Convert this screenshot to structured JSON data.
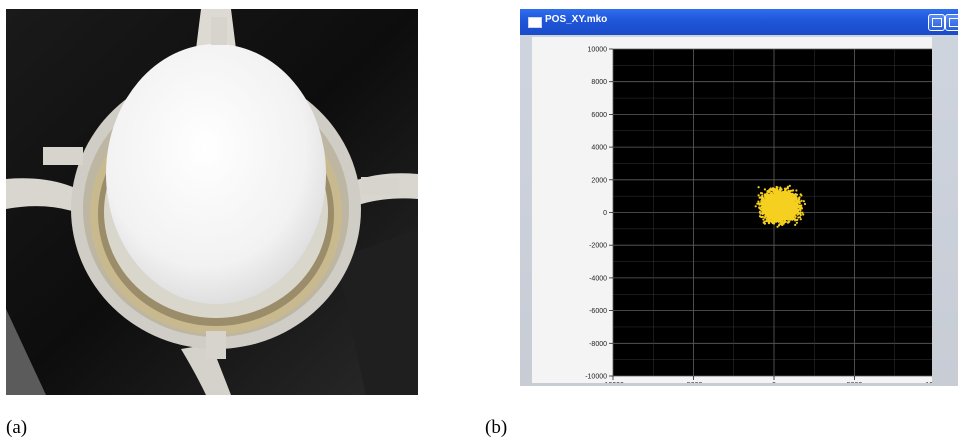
{
  "panels": {
    "a": {
      "caption": "(a)",
      "content": "photo"
    },
    "b": {
      "caption": "(b)",
      "content": "monitor-screenshot"
    }
  },
  "window": {
    "title": "POS_XY.mko",
    "title_bar_color": "#1f55d8"
  },
  "chart_data": {
    "type": "scatter",
    "x_ticks": [
      -10000,
      -5000,
      0,
      5000,
      10000
    ],
    "y_ticks": [
      10000,
      8000,
      6000,
      4000,
      2000,
      0,
      -2000,
      -4000,
      -6000,
      -8000,
      -10000
    ],
    "xlim": [
      -10000,
      10000
    ],
    "ylim": [
      -10000,
      10000
    ],
    "grid": true,
    "background": "#000000",
    "point_color": "#f5d020",
    "cluster": {
      "center": [
        400,
        400
      ],
      "spread_x": 2300,
      "spread_y": 1900
    }
  }
}
